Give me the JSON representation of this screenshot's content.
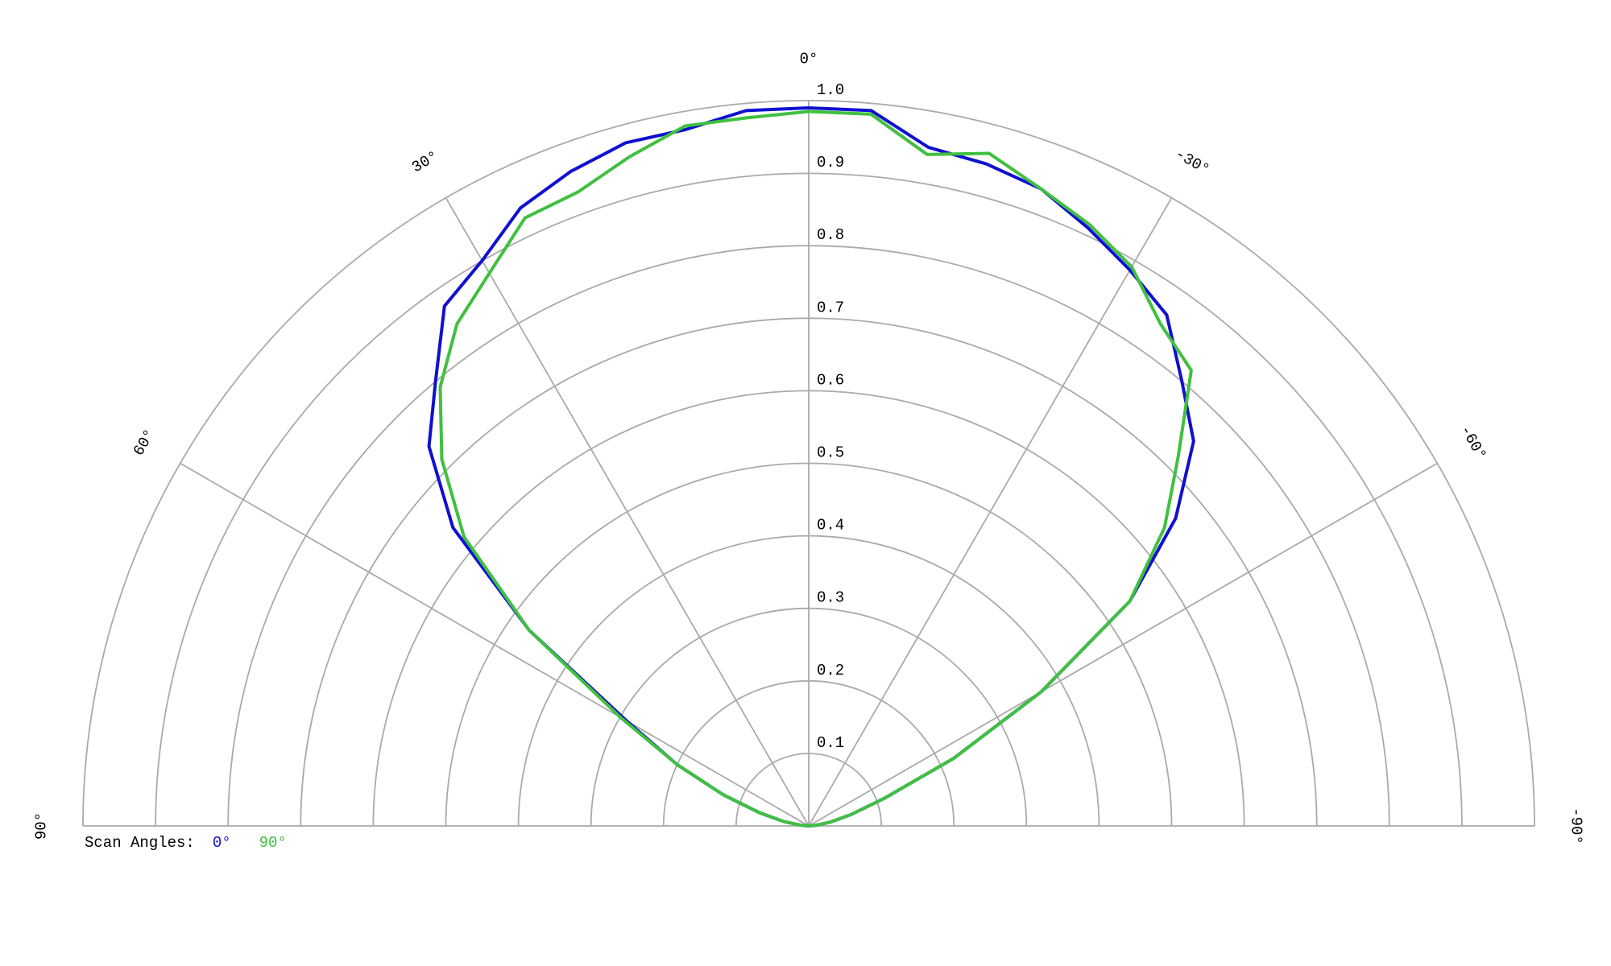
{
  "chart_data": {
    "type": "polar",
    "theta": [
      -90,
      -85,
      -80,
      -75,
      -70,
      -65,
      -60,
      -55,
      -50,
      -45,
      -40,
      -35,
      -30,
      -25,
      -20,
      -15,
      -10,
      -5,
      0,
      5,
      10,
      15,
      20,
      25,
      30,
      35,
      40,
      45,
      50,
      55,
      60,
      65,
      70,
      75,
      80,
      85,
      90
    ],
    "series": [
      {
        "name": "0°",
        "color": "#1010d0",
        "values": [
          0,
          0.01,
          0.03,
          0.06,
          0.11,
          0.22,
          0.37,
          0.54,
          0.66,
          0.75,
          0.8,
          0.86,
          0.885,
          0.91,
          0.935,
          0.945,
          0.95,
          0.99,
          0.99,
          0.99,
          0.975,
          0.975,
          0.96,
          0.94,
          0.9,
          0.875,
          0.8,
          0.74,
          0.64,
          0.47,
          0.29,
          0.2,
          0.125,
          0.07,
          0.035,
          0.01,
          0
        ]
      },
      {
        "name": "90°",
        "color": "#40c040",
        "values": [
          0,
          0.01,
          0.03,
          0.06,
          0.11,
          0.22,
          0.37,
          0.54,
          0.64,
          0.72,
          0.82,
          0.845,
          0.89,
          0.915,
          0.935,
          0.96,
          0.94,
          0.985,
          0.985,
          0.98,
          0.98,
          0.955,
          0.93,
          0.925,
          0.88,
          0.845,
          0.79,
          0.715,
          0.62,
          0.47,
          0.3,
          0.2,
          0.125,
          0.07,
          0.035,
          0.01,
          0
        ]
      }
    ],
    "legend_title": "Scan Angles:",
    "rlim": [
      0,
      1
    ],
    "rticks": [
      0.1,
      0.2,
      0.3,
      0.4,
      0.5,
      0.6,
      0.7,
      0.8,
      0.9,
      {
        "value": 1,
        "label": "1.0"
      }
    ],
    "thetalim": [
      -90,
      90
    ],
    "thetaticks": [
      {
        "value": 90,
        "label": "90°"
      },
      {
        "value": 60,
        "label": "60°"
      },
      {
        "value": 30,
        "label": "30°"
      },
      {
        "value": 0,
        "label": "0°"
      },
      {
        "value": -30,
        "label": "-30°"
      },
      {
        "value": -60,
        "label": "-60°"
      },
      {
        "value": -90,
        "label": "-90°"
      }
    ],
    "grid": true
  }
}
